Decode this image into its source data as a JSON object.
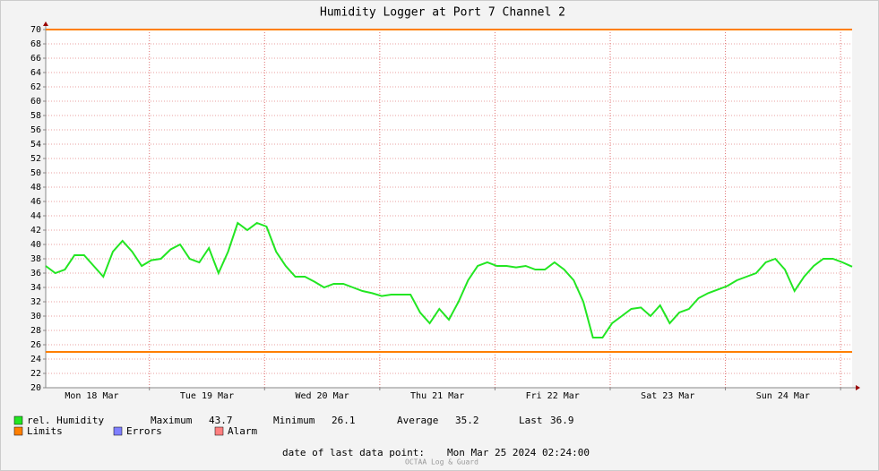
{
  "chart_data": {
    "type": "line",
    "title": "Humidity Logger at Port 7 Channel 2",
    "series": [
      {
        "name": "rel. Humidity",
        "color": "#22e622",
        "x": [
          2.4,
          4.4,
          6.4,
          8.4,
          10.4,
          12.4,
          14.4,
          16.4,
          18.4,
          20.4,
          22.4,
          24.4,
          26.4,
          28.4,
          30.4,
          32.4,
          34.4,
          36.4,
          38.4,
          40.4,
          42.4,
          44.4,
          46.4,
          48.4,
          50.4,
          52.4,
          54.4,
          56.4,
          58.4,
          60.4,
          62.4,
          64.4,
          66.4,
          68.4,
          70.4,
          72.4,
          74.4,
          76.4,
          78.4,
          80.4,
          82.4,
          84.4,
          86.4,
          88.4,
          90.4,
          92.4,
          94.4,
          96.4,
          98.4,
          100.4,
          102.4,
          104.4,
          106.4,
          108.4,
          110.4,
          112.4,
          114.4,
          116.4,
          118.4,
          120.4,
          122.4,
          124.4,
          126.4,
          128.4,
          130.4,
          132.4,
          134.4,
          136.4,
          138.4,
          140.4,
          142.4,
          144.4,
          146.4,
          148.4,
          150.4,
          152.4,
          154.4,
          156.4,
          158.4,
          160.4,
          162.4,
          164.4,
          166.4,
          168.4,
          170.4
        ],
        "values": [
          37,
          36,
          36.5,
          38.5,
          38.5,
          37,
          35.5,
          39,
          40.5,
          39,
          37,
          37.8,
          38,
          39.3,
          40,
          38,
          37.5,
          39.5,
          36,
          39,
          43,
          42,
          43,
          42.5,
          39,
          37,
          35.5,
          35.5,
          34.8,
          34,
          34.5,
          34.5,
          34,
          33.5,
          33.2,
          32.8,
          33,
          33,
          33,
          30.5,
          29,
          31,
          29.5,
          32,
          35,
          37,
          37.5,
          37,
          37,
          36.8,
          37,
          36.5,
          36.5,
          37.5,
          36.5,
          35,
          32,
          27,
          27,
          29,
          30,
          31,
          31.2,
          30,
          31.5,
          29,
          30.5,
          31,
          32.5,
          33.2,
          33.7,
          34.2,
          35,
          35.5,
          36,
          37.5,
          38,
          36.5,
          33.5,
          35.5,
          37,
          38,
          38,
          37.5,
          36.9
        ]
      }
    ],
    "limits": {
      "name": "Limits",
      "color": "#ff7f00",
      "values": [
        70,
        25
      ]
    },
    "legend_extra": [
      {
        "name": "Errors",
        "color": "#7f7fff"
      },
      {
        "name": "Alarm",
        "color": "#ff7f7f"
      }
    ],
    "stats": [
      {
        "label": "Maximum",
        "value": 43.7
      },
      {
        "label": "Minimum",
        "value": 26.1
      },
      {
        "label": "Average",
        "value": 35.2
      },
      {
        "label": "Last",
        "value": 36.9
      }
    ],
    "xlim": [
      2.4,
      170.4
    ],
    "xticks": [
      {
        "value": 12,
        "label": "Mon 18 Mar"
      },
      {
        "value": 36,
        "label": "Tue 19 Mar"
      },
      {
        "value": 60,
        "label": "Wed 20 Mar"
      },
      {
        "value": 84,
        "label": "Thu 21 Mar"
      },
      {
        "value": 108,
        "label": "Fri 22 Mar"
      },
      {
        "value": 132,
        "label": "Sat 23 Mar"
      },
      {
        "value": 156,
        "label": "Sun 24 Mar"
      }
    ],
    "xgrid": [
      24,
      48,
      72,
      96,
      120,
      144,
      168
    ],
    "ylim": [
      20,
      70
    ],
    "yticks": [
      20,
      22,
      24,
      26,
      28,
      30,
      32,
      34,
      36,
      38,
      40,
      42,
      44,
      46,
      48,
      50,
      52,
      54,
      56,
      58,
      60,
      62,
      64,
      66,
      68,
      70
    ],
    "grid": true,
    "footer_label": "date of last data point:",
    "footer_date": "Mon Mar 25 2024 02:24:00",
    "watermark": "OCTAA Log & Guard"
  }
}
